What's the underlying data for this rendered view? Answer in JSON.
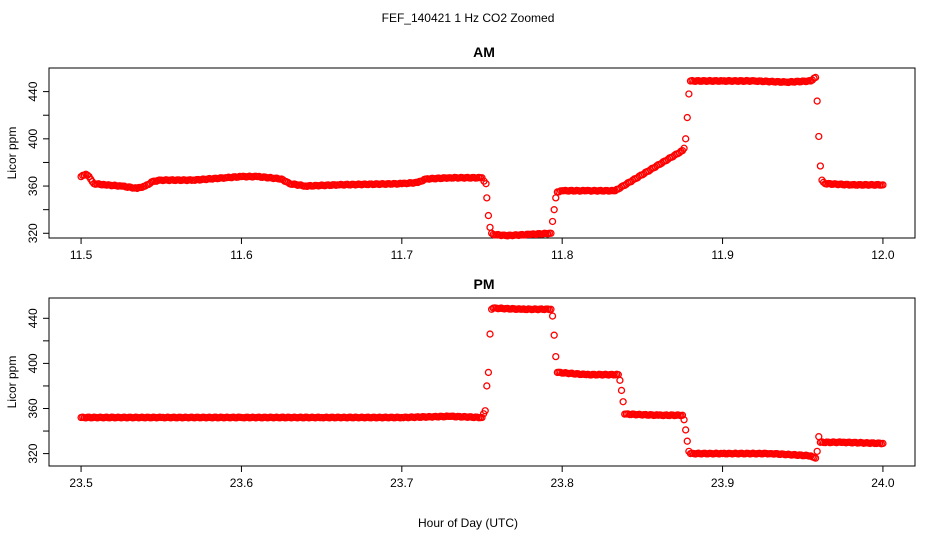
{
  "figure": {
    "title": "FEF_140421  1 Hz CO2 Zoomed",
    "xlabel": "Hour of Day (UTC)"
  },
  "chart_data": [
    {
      "type": "scatter",
      "title": "AM",
      "xlabel": "",
      "ylabel": "Licor ppm",
      "xlim": [
        11.48,
        12.02
      ],
      "ylim": [
        316,
        460
      ],
      "xticks": [
        11.5,
        11.6,
        11.7,
        11.8,
        11.9,
        12.0
      ],
      "xtick_labels": [
        "11.5",
        "11.6",
        "11.7",
        "11.8",
        "11.9",
        "12.0"
      ],
      "yticks": [
        320,
        360,
        400,
        440
      ],
      "ytick_labels": [
        "320",
        "360",
        "400",
        "440"
      ],
      "marker": "open-circle",
      "color": "#ff0000",
      "series": [
        {
          "x": [
            11.5,
            11.503,
            11.505,
            11.508,
            11.515,
            11.525,
            11.535,
            11.54,
            11.545,
            11.55,
            11.57,
            11.59,
            11.6,
            11.61,
            11.625,
            11.63,
            11.64,
            11.66,
            11.7,
            11.71,
            11.715,
            11.73,
            11.75,
            11.7525,
            11.753,
            11.754,
            11.755,
            11.756,
            11.757,
            11.765,
            11.78,
            11.793,
            11.794,
            11.795,
            11.796,
            11.797,
            11.8,
            11.815,
            11.833,
            11.875,
            11.876,
            11.877,
            11.878,
            11.879,
            11.88,
            11.9,
            11.92,
            11.94,
            11.955,
            11.958,
            11.959,
            11.96,
            11.961,
            11.962,
            11.964,
            11.98,
            12.0
          ],
          "y": [
            368,
            370,
            368,
            362,
            361,
            360,
            358,
            360,
            364,
            365,
            365,
            367,
            368,
            368,
            366,
            362,
            360,
            361,
            362,
            363,
            366,
            367,
            367,
            362,
            350,
            335,
            325,
            320,
            319,
            318,
            319,
            320,
            330,
            340,
            350,
            355,
            356,
            356,
            356,
            390,
            392,
            400,
            418,
            438,
            449,
            449,
            449,
            448,
            449,
            452,
            432,
            402,
            377,
            365,
            362,
            361,
            361
          ]
        }
      ]
    },
    {
      "type": "scatter",
      "title": "PM",
      "xlabel": "",
      "ylabel": "Licor ppm",
      "xlim": [
        23.48,
        24.02
      ],
      "ylim": [
        309,
        458
      ],
      "xticks": [
        23.5,
        23.6,
        23.7,
        23.8,
        23.9,
        24.0
      ],
      "xtick_labels": [
        "23.5",
        "23.6",
        "23.7",
        "23.8",
        "23.9",
        "24.0"
      ],
      "yticks": [
        320,
        360,
        400,
        440
      ],
      "ytick_labels": [
        "320",
        "360",
        "400",
        "440"
      ],
      "marker": "open-circle",
      "color": "#ff0000",
      "series": [
        {
          "x": [
            23.5,
            23.55,
            23.6,
            23.65,
            23.7,
            23.73,
            23.75,
            23.752,
            23.753,
            23.754,
            23.755,
            23.756,
            23.757,
            23.775,
            23.793,
            23.794,
            23.795,
            23.796,
            23.797,
            23.815,
            23.835,
            23.836,
            23.837,
            23.838,
            23.839,
            23.86,
            23.875,
            23.876,
            23.877,
            23.878,
            23.879,
            23.88,
            23.9,
            23.93,
            23.955,
            23.958,
            23.959,
            23.96,
            23.961,
            23.975,
            24.0
          ],
          "y": [
            352,
            352,
            352,
            352,
            352,
            353,
            352,
            358,
            380,
            392,
            426,
            448,
            449,
            448,
            448,
            442,
            425,
            406,
            392,
            390,
            390,
            385,
            376,
            366,
            355,
            354,
            354,
            350,
            341,
            331,
            322,
            320,
            320,
            320,
            318,
            316,
            322,
            335,
            330,
            330,
            329
          ]
        }
      ]
    }
  ]
}
